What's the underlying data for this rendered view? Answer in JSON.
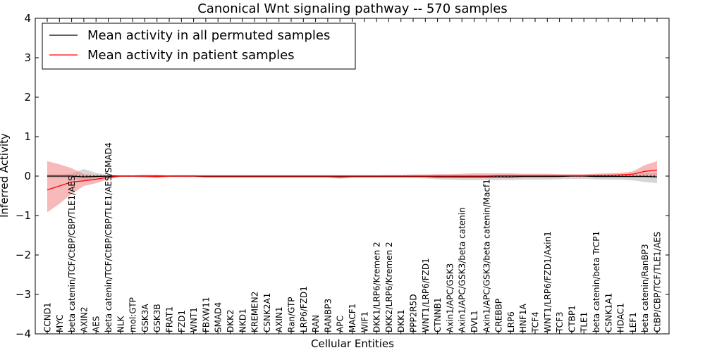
{
  "chart_data": {
    "type": "line",
    "title": "Canonical Wnt signaling pathway -- 570 samples",
    "xlabel": "Cellular Entities",
    "ylabel": "Inferred Activity",
    "ylim": [
      -4,
      4
    ],
    "yticks": [
      -4,
      -3,
      -2,
      -1,
      0,
      1,
      2,
      3,
      4
    ],
    "ytick_labels": [
      "−4",
      "−3",
      "−2",
      "−1",
      "0",
      "1",
      "2",
      "3",
      "4"
    ],
    "grid": false,
    "legend_position": "top-left",
    "categories": [
      "CCND1",
      "MYC",
      "beta catenin/TCF/CtBP/CBP/TLE1/AES",
      "AXIN2",
      "AES",
      "beta catenin/TCF/CtBP/CBP/TLE1/AES/SMAD4",
      "NLK",
      "mol:GTP",
      "GSK3A",
      "GSK3B",
      "FRAT1",
      "FZD1",
      "WNT1",
      "FBXW11",
      "SMAD4",
      "DKK2",
      "NKD1",
      "KREMEN2",
      "CSNK2A1",
      "AXIN1",
      "Ran/GTP",
      "LRP6/FZD1",
      "RAN",
      "RANBP3",
      "APC",
      "MACF1",
      "WIF1",
      "DKK1/LRP6/Kremen 2",
      "DKK2/LRP6/Kremen 2",
      "DKK1",
      "PPP2R5D",
      "WNT1/LRP6/FZD1",
      "CTNNB1",
      "Axin1/APC/GSK3",
      "Axin1/APC/GSK3/beta catenin",
      "DVL1",
      "Axin1/APC/GSK3/beta catenin/Macf1",
      "CREBBP",
      "LRP6",
      "HNF1A",
      "TCF4",
      "WNT1/LRP6/FZD1/Axin1",
      "TCF3",
      "CTBP1",
      "TLE1",
      "beta catenin/beta TrCP1",
      "CSNK1A1",
      "HDAC1",
      "LEF1",
      "beta catenin/RanBP3",
      "CtBP/CBP/TCF/TLE1/AES"
    ],
    "series": [
      {
        "name": "Mean activity in all permuted samples",
        "color": "#000000",
        "band_color": "#b4b4b4",
        "values": [
          0.0,
          0.0,
          0.0,
          -0.02,
          -0.01,
          0.0,
          0.0,
          0.0,
          0.0,
          0.0,
          0.0,
          0.0,
          0.0,
          -0.01,
          -0.01,
          -0.01,
          -0.01,
          -0.01,
          -0.01,
          -0.01,
          -0.01,
          -0.01,
          -0.01,
          -0.01,
          -0.02,
          -0.01,
          -0.01,
          -0.01,
          -0.01,
          -0.01,
          -0.01,
          -0.01,
          -0.02,
          -0.02,
          -0.02,
          -0.02,
          -0.02,
          -0.02,
          -0.02,
          -0.01,
          -0.01,
          -0.01,
          -0.01,
          0.0,
          0.0,
          -0.01,
          -0.01,
          -0.01,
          -0.01,
          -0.01,
          -0.02
        ],
        "band_lower": [
          -0.05,
          -0.05,
          -0.05,
          -0.12,
          -0.07,
          -0.03,
          -0.02,
          -0.02,
          -0.02,
          -0.02,
          -0.02,
          -0.03,
          -0.03,
          -0.05,
          -0.05,
          -0.05,
          -0.05,
          -0.05,
          -0.05,
          -0.05,
          -0.05,
          -0.05,
          -0.05,
          -0.05,
          -0.07,
          -0.05,
          -0.05,
          -0.05,
          -0.05,
          -0.05,
          -0.05,
          -0.06,
          -0.08,
          -0.09,
          -0.1,
          -0.1,
          -0.1,
          -0.1,
          -0.1,
          -0.09,
          -0.09,
          -0.09,
          -0.08,
          -0.07,
          -0.07,
          -0.08,
          -0.09,
          -0.09,
          -0.11,
          -0.15,
          -0.18
        ],
        "band_upper": [
          0.05,
          0.05,
          0.06,
          0.18,
          0.08,
          0.03,
          0.02,
          0.02,
          0.02,
          0.02,
          0.02,
          0.03,
          0.03,
          0.03,
          0.03,
          0.03,
          0.03,
          0.03,
          0.03,
          0.03,
          0.03,
          0.03,
          0.03,
          0.03,
          0.03,
          0.03,
          0.03,
          0.03,
          0.03,
          0.03,
          0.03,
          0.03,
          0.03,
          0.03,
          0.03,
          0.03,
          0.03,
          0.03,
          0.03,
          0.03,
          0.03,
          0.03,
          0.03,
          0.03,
          0.03,
          0.03,
          0.03,
          0.04,
          0.05,
          0.07,
          0.08
        ]
      },
      {
        "name": "Mean activity in patient samples",
        "color": "#ff0000",
        "band_color": "#f08080",
        "values": [
          -0.35,
          -0.25,
          -0.15,
          -0.12,
          -0.08,
          -0.03,
          0.0,
          0.0,
          0.0,
          -0.01,
          0.0,
          0.0,
          0.0,
          0.0,
          0.0,
          0.0,
          0.0,
          0.0,
          0.0,
          0.0,
          0.0,
          0.0,
          0.0,
          0.0,
          0.0,
          0.0,
          0.0,
          0.0,
          0.0,
          0.0,
          0.0,
          0.0,
          0.0,
          0.0,
          0.0,
          0.0,
          0.0,
          0.01,
          0.01,
          0.01,
          0.01,
          0.01,
          0.01,
          0.01,
          0.01,
          0.02,
          0.02,
          0.03,
          0.05,
          0.12,
          0.15
        ],
        "band_lower": [
          -0.92,
          -0.7,
          -0.45,
          -0.25,
          -0.18,
          -0.08,
          -0.02,
          -0.02,
          -0.04,
          -0.05,
          -0.02,
          -0.02,
          -0.02,
          -0.02,
          -0.02,
          -0.02,
          -0.02,
          -0.02,
          -0.02,
          -0.02,
          -0.02,
          -0.02,
          -0.02,
          -0.02,
          -0.02,
          -0.02,
          -0.02,
          -0.02,
          -0.02,
          -0.02,
          -0.03,
          -0.03,
          -0.03,
          -0.03,
          -0.04,
          -0.04,
          -0.04,
          -0.04,
          -0.04,
          -0.03,
          -0.03,
          -0.03,
          -0.02,
          -0.02,
          -0.02,
          -0.02,
          -0.02,
          -0.02,
          -0.03,
          -0.02,
          0.0
        ],
        "band_upper": [
          0.38,
          0.3,
          0.2,
          0.05,
          0.03,
          0.02,
          0.02,
          0.02,
          0.04,
          0.03,
          0.02,
          0.02,
          0.02,
          0.02,
          0.02,
          0.02,
          0.02,
          0.02,
          0.02,
          0.02,
          0.02,
          0.02,
          0.02,
          0.02,
          0.02,
          0.02,
          0.02,
          0.02,
          0.03,
          0.03,
          0.04,
          0.04,
          0.05,
          0.05,
          0.06,
          0.07,
          0.07,
          0.07,
          0.07,
          0.06,
          0.06,
          0.06,
          0.05,
          0.05,
          0.05,
          0.06,
          0.07,
          0.08,
          0.12,
          0.28,
          0.38
        ]
      }
    ],
    "baseline": 0
  }
}
